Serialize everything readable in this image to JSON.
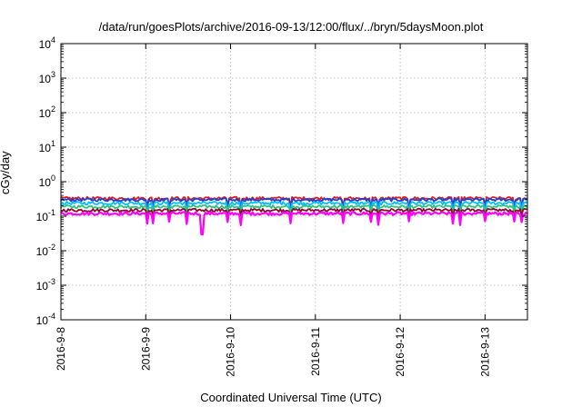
{
  "chart_data": {
    "type": "line",
    "title": "/data/run/goesPlots/archive/2016-09-13/12:00/flux/../bryn/5daysMoon.plot",
    "xlabel": "Coordinated Universal Time (UTC)",
    "ylabel": "cGy/day",
    "yscale": "log",
    "ylim": [
      0.0001,
      10000
    ],
    "yticks": [
      {
        "base": "10",
        "exp": "4"
      },
      {
        "base": "10",
        "exp": "3"
      },
      {
        "base": "10",
        "exp": "2"
      },
      {
        "base": "10",
        "exp": "1"
      },
      {
        "base": "10",
        "exp": "0"
      },
      {
        "base": "10",
        "exp": "-1"
      },
      {
        "base": "10",
        "exp": "-2"
      },
      {
        "base": "10",
        "exp": "-3"
      },
      {
        "base": "10",
        "exp": "-4"
      }
    ],
    "xlim": [
      "2016-09-08T00:00",
      "2016-09-13T12:00"
    ],
    "xticks": [
      "2016-9-8",
      "2016-9-9",
      "2016-9-10",
      "2016-9-11",
      "2016-9-12",
      "2016-9-13"
    ],
    "grid": true,
    "legend": "none",
    "series": [
      {
        "color": "#e41a1c",
        "typical": 0.33,
        "dip": 0.18
      },
      {
        "color": "#1f3fd1",
        "typical": 0.3,
        "dip": 0.16
      },
      {
        "color": "#00bfff",
        "typical": 0.24,
        "dip": 0.11
      },
      {
        "color": "#2ec27e",
        "typical": 0.19,
        "dip": 0.12
      },
      {
        "color": "#8b0a2a",
        "typical": 0.15,
        "dip": 0.09
      },
      {
        "color": "#ff00ff",
        "typical": 0.12,
        "dip": 0.06,
        "min": {
          "x": "2016-09-09T16:00",
          "y": 0.03
        }
      }
    ]
  }
}
